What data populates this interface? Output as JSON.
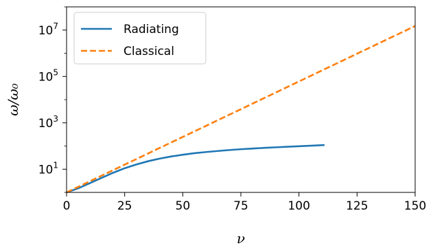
{
  "chart_data": {
    "type": "line",
    "xlabel": "ν",
    "ylabel": "ω/ω₀",
    "xlim": [
      0,
      150
    ],
    "ylim_log10": [
      0,
      8
    ],
    "yscale": "log",
    "grid": false,
    "legend_position": "top-left",
    "x_ticks": [
      {
        "value": 0,
        "label": "0"
      },
      {
        "value": 25,
        "label": "25"
      },
      {
        "value": 50,
        "label": "50"
      },
      {
        "value": 75,
        "label": "75"
      },
      {
        "value": 100,
        "label": "100"
      },
      {
        "value": 125,
        "label": "125"
      },
      {
        "value": 150,
        "label": "150"
      }
    ],
    "y_ticks": [
      {
        "value": 10,
        "base": "10",
        "exp": "1"
      },
      {
        "value": 1000,
        "base": "10",
        "exp": "3"
      },
      {
        "value": 100000,
        "base": "10",
        "exp": "5"
      },
      {
        "value": 10000000,
        "base": "10",
        "exp": "7"
      }
    ],
    "series": [
      {
        "name": "Radiating",
        "color": "#1f77b4",
        "style": "solid",
        "x": [
          0,
          5,
          10,
          15,
          20,
          25,
          30,
          35,
          40,
          45,
          50,
          55,
          60,
          65,
          70,
          75,
          80,
          85,
          90,
          95,
          100,
          105,
          111
        ],
        "y": [
          1.0,
          1.5,
          2.5,
          4.2,
          7.0,
          11,
          16,
          22,
          28.5,
          35.5,
          42,
          49,
          55,
          61,
          67,
          73,
          78,
          83,
          88,
          93,
          98,
          103,
          110
        ]
      },
      {
        "name": "Classical",
        "color": "#ff7f0e",
        "style": "dashed",
        "x": [
          0,
          150
        ],
        "y": [
          1.0,
          15000000
        ]
      }
    ]
  }
}
